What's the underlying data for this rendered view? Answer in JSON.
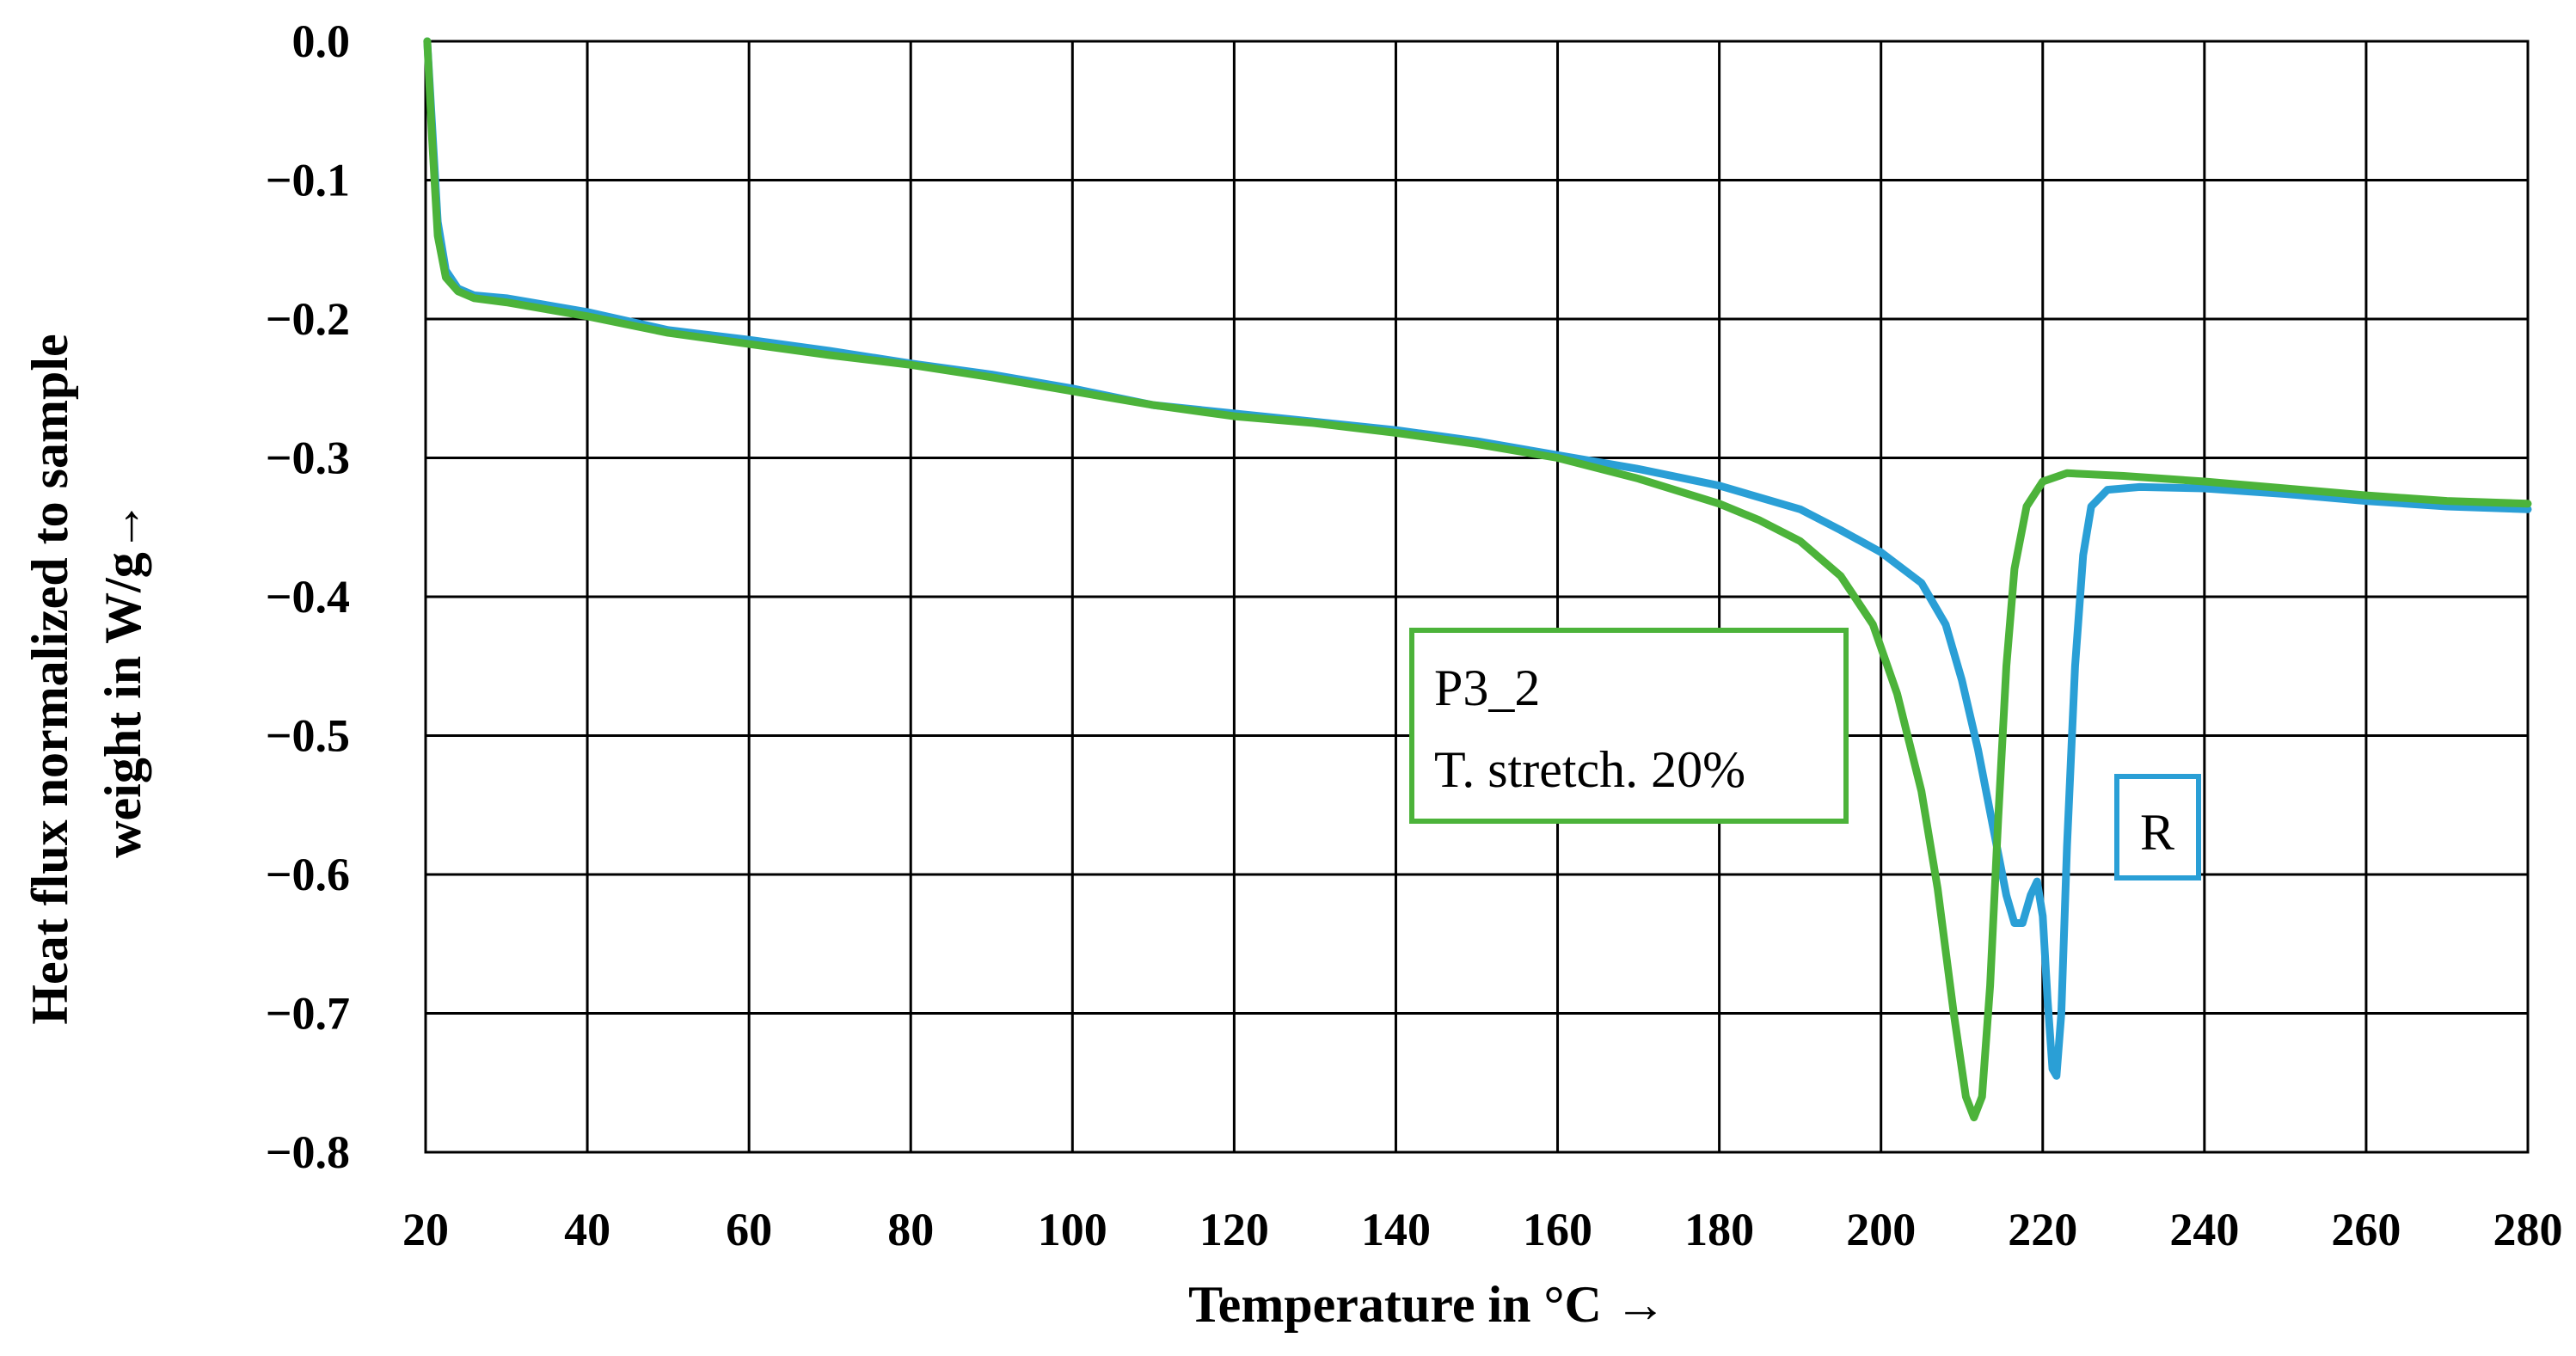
{
  "chart_data": {
    "type": "line",
    "title": "",
    "xlabel": "Temperature in °C →",
    "ylabel_lines": [
      "Heat flux normalized to sample",
      "weight in W/g→"
    ],
    "xlim": [
      20,
      280
    ],
    "ylim": [
      -0.8,
      0.0
    ],
    "x_ticks": [
      20,
      40,
      60,
      80,
      100,
      120,
      140,
      160,
      180,
      200,
      220,
      240,
      260,
      280
    ],
    "x_tick_labels": [
      "20",
      "40",
      "60",
      "80",
      "100",
      "120",
      "140",
      "160",
      "180",
      "200",
      "220",
      "240",
      "260",
      "280"
    ],
    "y_ticks": [
      0.0,
      -0.1,
      -0.2,
      -0.3,
      -0.4,
      -0.5,
      -0.6,
      -0.7,
      -0.8
    ],
    "y_tick_labels": [
      "0.0",
      "−0.1",
      "−0.2",
      "−0.3",
      "−0.4",
      "−0.5",
      "−0.6",
      "−0.7",
      "−0.8"
    ],
    "grid": true,
    "series": [
      {
        "name": "R",
        "color": "#2a9fd6",
        "label_lines": [
          "R"
        ],
        "points": [
          [
            20.2,
            0.0
          ],
          [
            20.8,
            -0.06
          ],
          [
            21.5,
            -0.13
          ],
          [
            22.5,
            -0.165
          ],
          [
            24,
            -0.178
          ],
          [
            26,
            -0.183
          ],
          [
            30,
            -0.185
          ],
          [
            40,
            -0.195
          ],
          [
            50,
            -0.208
          ],
          [
            60,
            -0.215
          ],
          [
            70,
            -0.223
          ],
          [
            80,
            -0.232
          ],
          [
            90,
            -0.24
          ],
          [
            100,
            -0.25
          ],
          [
            110,
            -0.262
          ],
          [
            120,
            -0.268
          ],
          [
            130,
            -0.274
          ],
          [
            140,
            -0.28
          ],
          [
            150,
            -0.288
          ],
          [
            160,
            -0.298
          ],
          [
            170,
            -0.308
          ],
          [
            180,
            -0.32
          ],
          [
            190,
            -0.337
          ],
          [
            195,
            -0.352
          ],
          [
            200,
            -0.368
          ],
          [
            205,
            -0.39
          ],
          [
            208,
            -0.42
          ],
          [
            210,
            -0.46
          ],
          [
            212,
            -0.51
          ],
          [
            214,
            -0.57
          ],
          [
            215.5,
            -0.615
          ],
          [
            216.5,
            -0.635
          ],
          [
            217.5,
            -0.635
          ],
          [
            218.5,
            -0.615
          ],
          [
            219.3,
            -0.605
          ],
          [
            220,
            -0.63
          ],
          [
            220.6,
            -0.69
          ],
          [
            221.2,
            -0.74
          ],
          [
            221.7,
            -0.745
          ],
          [
            222.3,
            -0.7
          ],
          [
            223,
            -0.58
          ],
          [
            224,
            -0.45
          ],
          [
            225,
            -0.37
          ],
          [
            226,
            -0.335
          ],
          [
            228,
            -0.323
          ],
          [
            232,
            -0.321
          ],
          [
            240,
            -0.322
          ],
          [
            250,
            -0.326
          ],
          [
            260,
            -0.331
          ],
          [
            270,
            -0.335
          ],
          [
            280,
            -0.337
          ]
        ]
      },
      {
        "name": "P3_2",
        "color": "#4cb33a",
        "label_lines": [
          "P3_2",
          "T. stretch. 20%"
        ],
        "points": [
          [
            20.2,
            0.0
          ],
          [
            20.8,
            -0.07
          ],
          [
            21.5,
            -0.14
          ],
          [
            22.5,
            -0.17
          ],
          [
            24,
            -0.18
          ],
          [
            26,
            -0.185
          ],
          [
            30,
            -0.188
          ],
          [
            40,
            -0.198
          ],
          [
            50,
            -0.21
          ],
          [
            60,
            -0.218
          ],
          [
            70,
            -0.226
          ],
          [
            80,
            -0.233
          ],
          [
            90,
            -0.242
          ],
          [
            100,
            -0.252
          ],
          [
            110,
            -0.262
          ],
          [
            120,
            -0.27
          ],
          [
            130,
            -0.275
          ],
          [
            140,
            -0.282
          ],
          [
            150,
            -0.29
          ],
          [
            160,
            -0.3
          ],
          [
            170,
            -0.315
          ],
          [
            180,
            -0.333
          ],
          [
            185,
            -0.345
          ],
          [
            190,
            -0.36
          ],
          [
            195,
            -0.385
          ],
          [
            199,
            -0.42
          ],
          [
            202,
            -0.47
          ],
          [
            205,
            -0.54
          ],
          [
            207,
            -0.61
          ],
          [
            209,
            -0.7
          ],
          [
            210.5,
            -0.76
          ],
          [
            211.5,
            -0.775
          ],
          [
            212.5,
            -0.76
          ],
          [
            213.5,
            -0.68
          ],
          [
            214.5,
            -0.56
          ],
          [
            215.5,
            -0.45
          ],
          [
            216.5,
            -0.38
          ],
          [
            218,
            -0.335
          ],
          [
            220,
            -0.317
          ],
          [
            223,
            -0.311
          ],
          [
            230,
            -0.313
          ],
          [
            240,
            -0.317
          ],
          [
            250,
            -0.322
          ],
          [
            260,
            -0.327
          ],
          [
            270,
            -0.331
          ],
          [
            280,
            -0.333
          ]
        ]
      }
    ]
  }
}
